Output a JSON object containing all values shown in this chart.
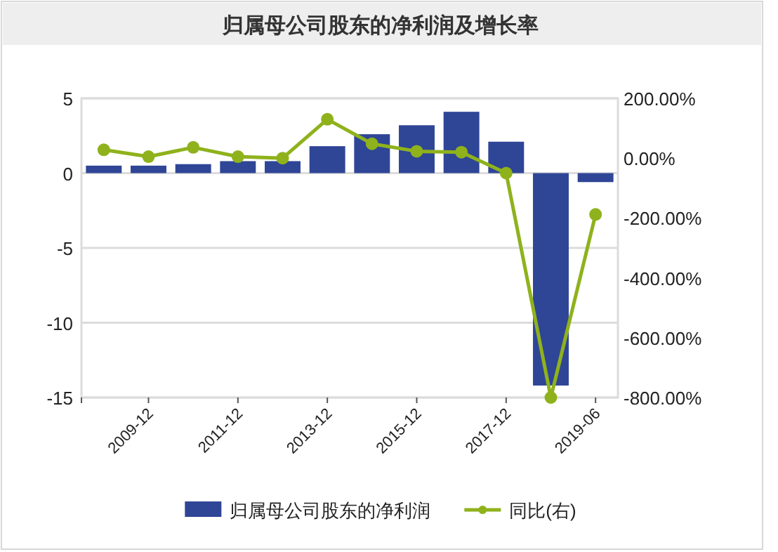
{
  "chart_data": {
    "type": "bar",
    "title": "归属母公司股东的净利润及增长率",
    "categories": [
      null,
      "2009-12",
      null,
      "2011-12",
      null,
      "2013-12",
      null,
      "2015-12",
      null,
      "2017-12",
      null,
      "2019-06"
    ],
    "series": [
      {
        "name": "归属母公司股东的净利润",
        "color": "#2f4596",
        "values": [
          0.5,
          0.5,
          0.6,
          0.8,
          0.8,
          1.8,
          2.6,
          3.2,
          4.1,
          2.1,
          -14.2,
          -0.6
        ]
      },
      {
        "name": "同比(右)",
        "type": "line",
        "axis": "y2",
        "color": "#8fb21c",
        "marker": "circle",
        "values": [
          28,
          5,
          36,
          5,
          0,
          130,
          48,
          23,
          20,
          -50,
          -800,
          -188
        ]
      }
    ],
    "ylim": [
      -15,
      5
    ],
    "yticks": [
      -15,
      -10,
      -5,
      0,
      5
    ],
    "y2lim": [
      -800,
      200
    ],
    "y2ticks": [
      {
        "value": -800,
        "label": "-800.00%"
      },
      {
        "value": -600,
        "label": "-600.00%"
      },
      {
        "value": -400,
        "label": "-400.00%"
      },
      {
        "value": -200,
        "label": "-200.00%"
      },
      {
        "value": 0,
        "label": "0.00%"
      },
      {
        "value": 200,
        "label": "200.00%"
      }
    ],
    "grid": "y",
    "legend": "bottom"
  }
}
